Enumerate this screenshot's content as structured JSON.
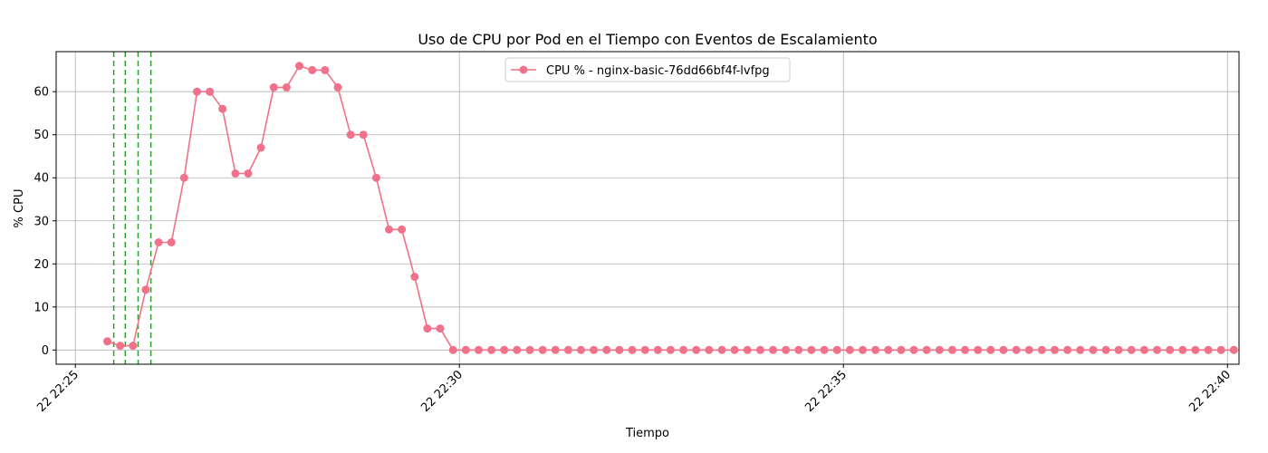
{
  "chart_data": {
    "type": "line",
    "title": "Uso de CPU por Pod en el Tiempo con Eventos de Escalamiento",
    "xlabel": "Tiempo",
    "ylabel": "% CPU",
    "x_axis": {
      "unit": "minute",
      "range": [
        "22 22:24.75",
        "22 22:40.15"
      ],
      "ticks": [
        {
          "value": "22 22:25",
          "label": "22 22:25"
        },
        {
          "value": "22 22:30",
          "label": "22 22:30"
        },
        {
          "value": "22 22:35",
          "label": "22 22:35"
        },
        {
          "value": "22 22:40",
          "label": "22 22:40"
        }
      ]
    },
    "y_axis": {
      "range": [
        -3.3,
        69.3
      ],
      "ticks": [
        0,
        10,
        20,
        30,
        40,
        50,
        60
      ]
    },
    "grid": true,
    "legend_position": "upper center",
    "series": [
      {
        "name": "CPU % - nginx-basic-76dd66bf4f-lvfpg",
        "color": "#f0718a",
        "marker": "circle",
        "start_time": "22 22:25:25",
        "interval_seconds": 10,
        "values": [
          2,
          1,
          1,
          14,
          25,
          25,
          40,
          60,
          60,
          56,
          41,
          41,
          47,
          61,
          61,
          66,
          65,
          65,
          61,
          50,
          50,
          40,
          28,
          28,
          17,
          5,
          5,
          0,
          0,
          0,
          0,
          0,
          0,
          0,
          0,
          0,
          0,
          0,
          0,
          0,
          0,
          0,
          0,
          0,
          0,
          0,
          0,
          0,
          0,
          0,
          0,
          0,
          0,
          0,
          0,
          0,
          0,
          0,
          0,
          0,
          0,
          0,
          0,
          0,
          0,
          0,
          0,
          0,
          0,
          0,
          0,
          0,
          0,
          0,
          0,
          0,
          0,
          0,
          0,
          0,
          0,
          0,
          0,
          0,
          0,
          0,
          0,
          0,
          0
        ]
      }
    ],
    "scaling_events": {
      "color": "#2ca02c",
      "style": "dashed",
      "times": [
        "22 22:25:30",
        "22 22:25:39",
        "22 22:25:49",
        "22 22:25:59"
      ]
    }
  }
}
